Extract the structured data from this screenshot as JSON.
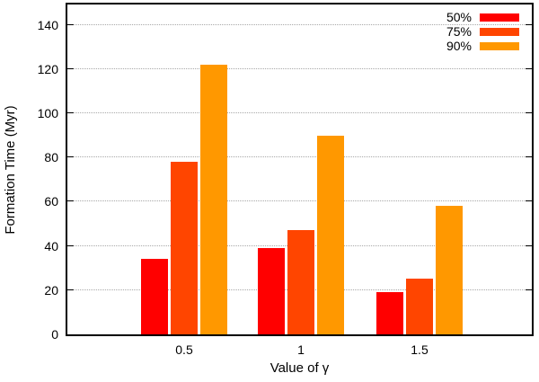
{
  "figure": {
    "xlabel": "Value of γ",
    "ylabel": "Formation Time (Myr)",
    "background_color": "#ffffff",
    "axis_color": "#000000",
    "gridline_color": "#a8a8a8"
  },
  "chart_data": {
    "type": "bar",
    "title": "",
    "xlabel": "Value of γ",
    "ylabel": "Formation Time (Myr)",
    "categories": [
      "0.5",
      "1",
      "1.5"
    ],
    "series": [
      {
        "name": "50%",
        "color": "#ff0000",
        "values": [
          34,
          39,
          19
        ]
      },
      {
        "name": "75%",
        "color": "#ff4500",
        "values": [
          78,
          47,
          25
        ]
      },
      {
        "name": "90%",
        "color": "#ff9800",
        "values": [
          122,
          90,
          58
        ]
      }
    ],
    "ylim": [
      0,
      150
    ],
    "yticks": [
      0,
      20,
      40,
      60,
      80,
      100,
      120,
      140
    ],
    "grid": "horizontal-dotted",
    "legend_position": "top-right-inside"
  }
}
